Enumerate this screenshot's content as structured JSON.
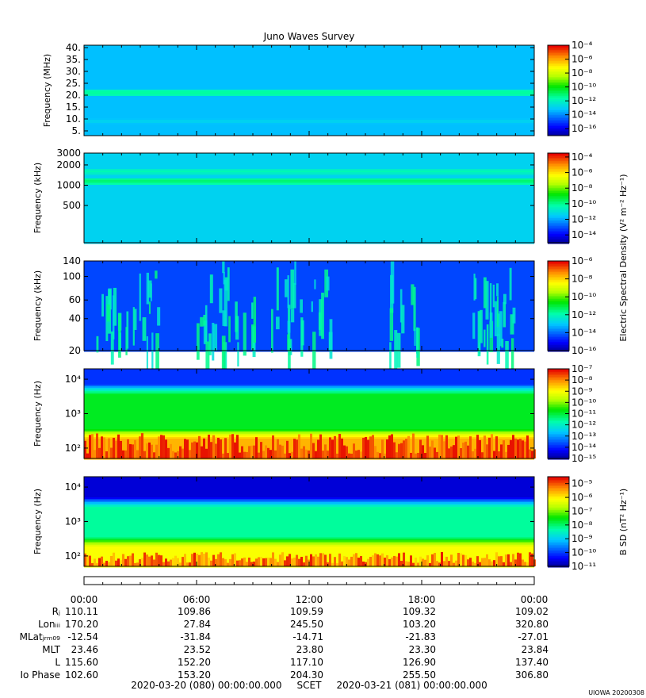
{
  "figure": {
    "title": "Juno Waves Survey",
    "stamp": "UIOWA 20200308",
    "time_range_label": "2020-03-20 (080) 00:00:00.000     SCET     2020-03-21 (081) 00:00:00.000",
    "xaxis_ticks": [
      "00:00",
      "06:00",
      "12:00",
      "18:00",
      "00:00"
    ],
    "colorbar_label_efield": "Electric Spectral Density (V² m⁻² Hz⁻¹)",
    "colorbar_label_bfield": "B SD (nT² Hz⁻¹)"
  },
  "ephemeris": {
    "rows": [
      {
        "label": "Rⱼ",
        "values": [
          "110.11",
          "109.86",
          "109.59",
          "109.32",
          "109.02"
        ]
      },
      {
        "label": "Lonᵢᵢᵢ",
        "values": [
          "170.20",
          "27.84",
          "245.50",
          "103.20",
          "320.80"
        ]
      },
      {
        "label": "MLatⱼᵣₘ₀₉",
        "values": [
          "-12.54",
          "-31.84",
          "-14.71",
          "-21.83",
          "-27.01"
        ]
      },
      {
        "label": "MLT",
        "values": [
          "23.46",
          "23.52",
          "23.80",
          "23.30",
          "23.84"
        ]
      },
      {
        "label": "L",
        "values": [
          "115.60",
          "152.20",
          "117.10",
          "126.90",
          "137.40"
        ]
      },
      {
        "label": "Io Phase",
        "values": [
          "102.60",
          "153.20",
          "204.30",
          "255.50",
          "306.80"
        ]
      }
    ]
  },
  "chart_data": [
    {
      "type": "heatmap",
      "panel": "HFR-High",
      "ylabel": "Frequency (MHz)",
      "yscale": "linear",
      "ylim": [
        3,
        41
      ],
      "yticks": [
        5,
        10,
        15,
        20,
        25,
        30,
        35,
        40
      ],
      "yticklabels": [
        "5.",
        "10.",
        "15.",
        "20.",
        "25.",
        "30.",
        "35.",
        "40."
      ],
      "colorbar": {
        "log_min": -17,
        "log_max": -4,
        "tick_exponents": [
          -16,
          -14,
          -12,
          -10,
          -8,
          -6,
          -4
        ]
      },
      "background_log_level": -13.2,
      "bands": [
        {
          "freq": 21,
          "log_level": -11.3
        },
        {
          "freq": 9,
          "log_level": -12.7
        }
      ]
    },
    {
      "type": "heatmap",
      "panel": "HFR-Low",
      "ylabel": "Frequency (kHz)",
      "yscale": "log",
      "ylim": [
        140,
        3000
      ],
      "yticks": [
        500,
        1000,
        2000,
        3000
      ],
      "yticklabels": [
        "500",
        "1000",
        "2000",
        "3000"
      ],
      "colorbar": {
        "log_min": -15,
        "log_max": -3.5,
        "tick_exponents": [
          -14,
          -12,
          -10,
          -8,
          -6,
          -4
        ]
      },
      "background_log_level": -11.3,
      "bands": [
        {
          "freq": 1150,
          "log_level": -9.6
        },
        {
          "freq": 1600,
          "log_level": -10.3
        },
        {
          "freq": 250,
          "log_level": -11.9
        }
      ]
    },
    {
      "type": "heatmap",
      "panel": "LFR",
      "ylabel": "Frequency (kHz)",
      "yscale": "log",
      "ylim": [
        20,
        140
      ],
      "yticks": [
        20,
        40,
        60,
        100,
        140
      ],
      "yticklabels": [
        "20",
        "40",
        "60",
        "100",
        "140"
      ],
      "colorbar": {
        "log_min": -16,
        "log_max": -6,
        "tick_exponents": [
          -16,
          -14,
          -12,
          -10,
          -8,
          -6
        ]
      },
      "background_log_level": -14.3,
      "enhancement_hours": [
        1.5,
        3.1,
        6.8,
        8.2,
        10.5,
        12.3,
        17.1,
        21.4,
        22.1
      ],
      "enhancement_log_level": -12.6
    },
    {
      "type": "heatmap",
      "panel": "E-LF",
      "ylabel": "Frequency (Hz)",
      "yscale": "log",
      "ylim": [
        50,
        20000
      ],
      "yticks": [
        100,
        1000,
        10000
      ],
      "yticklabels": [
        "10²",
        "10³",
        "10⁴"
      ],
      "colorbar": {
        "log_min": -15,
        "log_max": -7,
        "tick_exponents": [
          -15,
          -14,
          -13,
          -12,
          -11,
          -10,
          -9,
          -8,
          -7
        ]
      },
      "upper_log_level": -13.8,
      "mid_log_level": -10.8,
      "low_log_level": -8.3,
      "boundary_freq": 3500
    },
    {
      "type": "heatmap",
      "panel": "B-LF",
      "ylabel": "Frequency (Hz)",
      "yscale": "log",
      "ylim": [
        50,
        20000
      ],
      "yticks": [
        100,
        1000,
        10000
      ],
      "yticklabels": [
        "10²",
        "10³",
        "10⁴"
      ],
      "colorbar": {
        "log_min": -11,
        "log_max": -4.5,
        "tick_exponents": [
          -11,
          -10,
          -9,
          -8,
          -7,
          -6,
          -5
        ]
      },
      "upper_log_level": -10.6,
      "mid_log_level": -8.2,
      "low_log_level": -6.1
    }
  ]
}
